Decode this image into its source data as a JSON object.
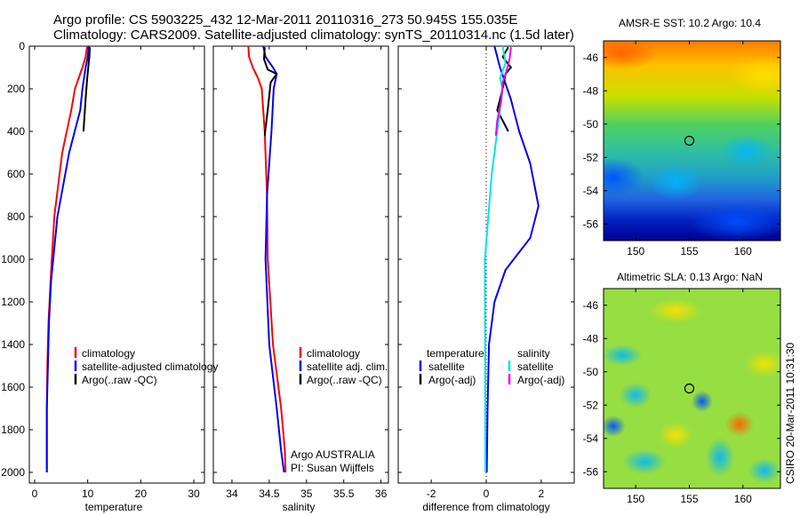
{
  "header": {
    "line1": "Argo profile: CS 5903225_432 12-Mar-2011 20110316_273 50.945S 155.035E",
    "line2": "Climatology: CARS2009. Satellite-adjusted climatology: synTS_20110314.nc (1.5d later)"
  },
  "colors": {
    "climatology": "#ff0000",
    "satellite": "#0000ff",
    "argo": "#000000",
    "satellite_salinity": "#00e5e5",
    "argo_adj_salinity": "#ee00ee"
  },
  "footer": {
    "institution": "Argo AUSTRALIA",
    "pi": "PI: Susan Wijffels",
    "timestamp": "CSIRO 20-Mar-2011 10:31:30"
  },
  "chart_data": [
    {
      "type": "line",
      "xlabel": "temperature",
      "ylabel": "",
      "xlim": [
        -1,
        32
      ],
      "ylim": [
        2050,
        0
      ],
      "xticks": [
        0,
        10,
        20,
        30
      ],
      "yticks": [
        0,
        200,
        400,
        600,
        800,
        1000,
        1200,
        1400,
        1600,
        1800,
        2000
      ],
      "legend": [
        "climatology",
        "satellite-adjusted climatology",
        "Argo(..raw -QC)"
      ],
      "series": [
        {
          "name": "climatology",
          "color": "red",
          "x": [
            9.9,
            9.6,
            9.0,
            8.3,
            7.6,
            6.9,
            5.2,
            3.7,
            3.0,
            2.6,
            2.4,
            2.3,
            2.3
          ],
          "y": [
            0,
            50,
            100,
            150,
            200,
            300,
            500,
            800,
            1100,
            1300,
            1500,
            1700,
            2000
          ]
        },
        {
          "name": "satellite-adjusted climatology",
          "color": "blue",
          "x": [
            10.2,
            10.0,
            9.6,
            9.3,
            9.0,
            8.6,
            6.5,
            4.3,
            3.1,
            2.7,
            2.5,
            2.3,
            2.3
          ],
          "y": [
            0,
            50,
            100,
            150,
            200,
            300,
            500,
            800,
            1100,
            1300,
            1500,
            1700,
            2000
          ]
        },
        {
          "name": "Argo(..raw -QC)",
          "color": "black",
          "x": [
            10.4,
            10.3,
            10.1,
            9.9,
            9.6,
            9.2
          ],
          "y": [
            5,
            50,
            100,
            150,
            250,
            400
          ]
        }
      ]
    },
    {
      "type": "line",
      "xlabel": "salinity",
      "xlim": [
        33.75,
        36.1
      ],
      "ylim": [
        2050,
        0
      ],
      "xticks": [
        34,
        34.5,
        35,
        35.5,
        36
      ],
      "legend": [
        "climatology",
        "satellite adj. clim.",
        "Argo(..raw -QC)"
      ],
      "series": [
        {
          "name": "climatology",
          "color": "red",
          "x": [
            34.22,
            34.23,
            34.28,
            34.35,
            34.4,
            34.44,
            34.47,
            34.48,
            34.55,
            34.66,
            34.71,
            34.72
          ],
          "y": [
            0,
            50,
            100,
            150,
            200,
            400,
            700,
            1000,
            1400,
            1700,
            1900,
            2000
          ]
        },
        {
          "name": "satellite adj. clim.",
          "color": "blue",
          "x": [
            34.42,
            34.45,
            34.55,
            34.6,
            34.56,
            34.53,
            34.47,
            34.45,
            34.5,
            34.6,
            34.66,
            34.7
          ],
          "y": [
            0,
            50,
            100,
            130,
            200,
            400,
            700,
            1000,
            1400,
            1700,
            1900,
            2000
          ]
        },
        {
          "name": "Argo(..raw -QC)",
          "color": "black",
          "x": [
            34.44,
            34.43,
            34.48,
            34.6,
            34.52,
            34.48,
            34.44
          ],
          "y": [
            5,
            60,
            110,
            130,
            170,
            300,
            420
          ]
        }
      ]
    },
    {
      "type": "line",
      "xlabel": "difference from climatology",
      "xlim": [
        -3.2,
        3.2
      ],
      "ylim": [
        2050,
        0
      ],
      "xticks": [
        -2,
        0,
        2
      ],
      "legend": [
        "temperature",
        "satellite",
        "Argo(-adj)",
        "salinity",
        "satellite",
        "Argo(-adj)"
      ],
      "series": [
        {
          "name": "temperature satellite",
          "color": "blue",
          "x": [
            0.3,
            0.5,
            0.9,
            1.2,
            1.6,
            1.9,
            1.6,
            0.7,
            0.3,
            0.1,
            0.05,
            0.02
          ],
          "y": [
            0,
            100,
            250,
            400,
            550,
            750,
            900,
            1050,
            1200,
            1400,
            1700,
            2000
          ]
        },
        {
          "name": "temperature Argo(-adj)",
          "color": "black",
          "x": [
            0.8,
            0.6,
            0.9,
            0.7,
            0.6,
            0.4,
            0.6,
            0.8
          ],
          "y": [
            5,
            50,
            100,
            130,
            200,
            300,
            350,
            400
          ]
        },
        {
          "name": "salinity satellite",
          "color": "cyan",
          "x": [
            0.6,
            0.7,
            0.5,
            0.6,
            0.4,
            0.2,
            -0.05,
            -0.04,
            -0.03
          ],
          "y": [
            0,
            80,
            150,
            200,
            400,
            600,
            1000,
            1500,
            2000
          ]
        },
        {
          "name": "salinity Argo(-adj)",
          "color": "magenta",
          "x": [
            0.9,
            0.85,
            0.75,
            0.6,
            0.55,
            0.4,
            0.35
          ],
          "y": [
            5,
            60,
            110,
            170,
            250,
            350,
            420
          ]
        }
      ]
    },
    {
      "type": "heatmap",
      "title": "AMSR-E SST: 10.2 Argo: 10.4",
      "xlim": [
        147,
        163.5
      ],
      "ylim": [
        -57,
        -45
      ],
      "xticks": [
        150,
        155,
        160
      ],
      "yticks": [
        -46,
        -48,
        -50,
        -52,
        -54,
        -56
      ],
      "profile_marker": {
        "lon": 155.0,
        "lat": -51.0
      },
      "colormap": "jet"
    },
    {
      "type": "heatmap",
      "title": "Altimetric SLA: 0.13 Argo: NaN",
      "xlim": [
        147,
        163.5
      ],
      "ylim": [
        -57,
        -45
      ],
      "xticks": [
        150,
        155,
        160
      ],
      "yticks": [
        -46,
        -48,
        -50,
        -52,
        -54,
        -56
      ],
      "profile_marker": {
        "lon": 155.0,
        "lat": -51.0
      },
      "colormap": "jet"
    }
  ]
}
